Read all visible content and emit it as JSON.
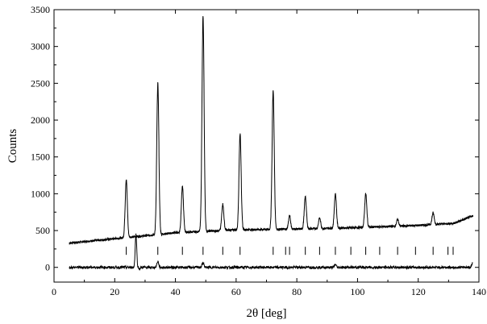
{
  "chart_data": {
    "type": "line",
    "xlabel": "2θ [deg]",
    "ylabel": "Counts",
    "xlim": [
      0,
      140
    ],
    "ylim": [
      -200,
      3500
    ],
    "xticks": [
      0,
      20,
      40,
      60,
      80,
      100,
      120,
      140
    ],
    "yticks": [
      0,
      500,
      1000,
      1500,
      2000,
      2500,
      3000,
      3500
    ],
    "grid": false,
    "legend": "none",
    "colors": {
      "line": "#000000"
    },
    "series": [
      {
        "role": "observed-and-calculated-pattern",
        "background": [
          [
            5,
            330
          ],
          [
            20,
            390
          ],
          [
            40,
            470
          ],
          [
            60,
            510
          ],
          [
            80,
            520
          ],
          [
            100,
            540
          ],
          [
            120,
            570
          ],
          [
            132,
            600
          ],
          [
            138,
            700
          ]
        ],
        "peaks": [
          {
            "x": 23.8,
            "y": 1190
          },
          {
            "x": 34.2,
            "y": 2500
          },
          {
            "x": 42.3,
            "y": 1100
          },
          {
            "x": 49.1,
            "y": 3400
          },
          {
            "x": 55.6,
            "y": 860
          },
          {
            "x": 61.3,
            "y": 1820
          },
          {
            "x": 72.2,
            "y": 2400
          },
          {
            "x": 77.6,
            "y": 700
          },
          {
            "x": 82.8,
            "y": 960
          },
          {
            "x": 87.5,
            "y": 670
          },
          {
            "x": 92.7,
            "y": 1000
          },
          {
            "x": 102.7,
            "y": 1000
          },
          {
            "x": 113.2,
            "y": 650
          },
          {
            "x": 119.1,
            "y": 570
          },
          {
            "x": 124.9,
            "y": 740
          }
        ]
      },
      {
        "role": "difference-curve",
        "baseline": 0,
        "features": [
          [
            27,
            450
          ],
          [
            28.2,
            -20
          ],
          [
            34.2,
            80
          ],
          [
            49.1,
            60
          ],
          [
            92.7,
            40
          ],
          [
            138,
            60
          ]
        ]
      }
    ],
    "reflection_ticks": {
      "y": 225,
      "positions": [
        23.8,
        34.2,
        42.3,
        49.1,
        55.6,
        61.3,
        72.2,
        76.3,
        77.6,
        82.8,
        87.5,
        92.7,
        97.8,
        102.7,
        107.3,
        113.2,
        119.1,
        124.9,
        129.8,
        131.5
      ]
    }
  }
}
